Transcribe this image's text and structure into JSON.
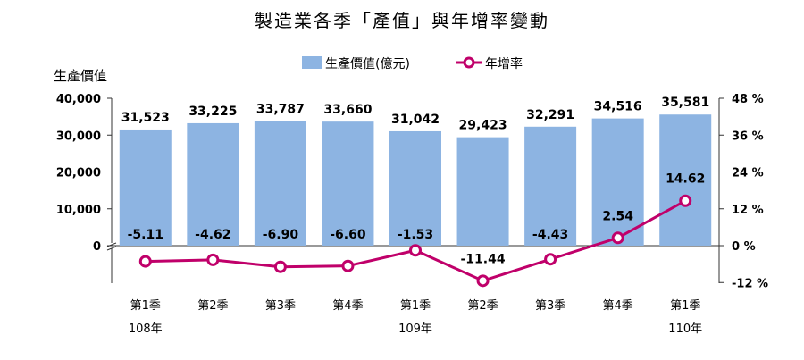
{
  "chart_data": {
    "type": "bar+line",
    "title": "製造業各季「產值」與年增率變動",
    "ylabel_left": "生產價值",
    "categories": [
      "第1季",
      "第2季",
      "第3季",
      "第4季",
      "第1季",
      "第2季",
      "第3季",
      "第4季",
      "第1季"
    ],
    "year_labels": [
      {
        "label": "108年",
        "index": 0
      },
      {
        "label": "109年",
        "index": 4
      },
      {
        "label": "110年",
        "index": 8
      }
    ],
    "series": [
      {
        "name": "生產價值(億元)",
        "kind": "bar",
        "axis": "left",
        "color": "#8db4e2",
        "values": [
          31523,
          33225,
          33787,
          33660,
          31042,
          29423,
          32291,
          34516,
          35581
        ],
        "labels": [
          "31,523",
          "33,225",
          "33,787",
          "33,660",
          "31,042",
          "29,423",
          "32,291",
          "34,516",
          "35,581"
        ]
      },
      {
        "name": "年增率",
        "kind": "line",
        "axis": "right",
        "color": "#c0006a",
        "values": [
          -5.11,
          -4.62,
          -6.9,
          -6.6,
          -1.53,
          -11.44,
          -4.43,
          2.54,
          14.62
        ],
        "labels": [
          "-5.11",
          "-4.62",
          "-6.90",
          "-6.60",
          "-1.53",
          "-11.44",
          "-4.43",
          "2.54",
          "14.62"
        ]
      }
    ],
    "left_axis": {
      "min": 0,
      "max": 40000,
      "ticks": [
        "0",
        "10,000",
        "20,000",
        "30,000",
        "40,000"
      ],
      "tick_values": [
        0,
        10000,
        20000,
        30000,
        40000
      ]
    },
    "right_axis": {
      "min": -12,
      "max": 48,
      "ticks": [
        "-12 %",
        "0 %",
        "12 %",
        "24 %",
        "36 %",
        "48 %"
      ],
      "tick_values": [
        -12,
        0,
        12,
        24,
        36,
        48
      ]
    },
    "grid": false,
    "legend": "top-center"
  }
}
